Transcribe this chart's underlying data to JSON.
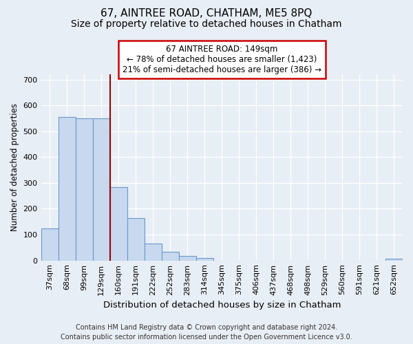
{
  "title": "67, AINTREE ROAD, CHATHAM, ME5 8PQ",
  "subtitle": "Size of property relative to detached houses in Chatham",
  "xlabel": "Distribution of detached houses by size in Chatham",
  "ylabel": "Number of detached properties",
  "categories": [
    "37sqm",
    "68sqm",
    "99sqm",
    "129sqm",
    "160sqm",
    "191sqm",
    "222sqm",
    "252sqm",
    "283sqm",
    "314sqm",
    "345sqm",
    "375sqm",
    "406sqm",
    "437sqm",
    "468sqm",
    "498sqm",
    "529sqm",
    "560sqm",
    "591sqm",
    "621sqm",
    "652sqm"
  ],
  "values": [
    125,
    555,
    550,
    550,
    285,
    163,
    65,
    33,
    17,
    11,
    0,
    0,
    0,
    0,
    0,
    0,
    0,
    0,
    0,
    0,
    7
  ],
  "bar_color": "#c8d8ee",
  "bar_edge_color": "#6699cc",
  "vline_x_idx": 3.5,
  "vline_color": "#990000",
  "annotation_text": "67 AINTREE ROAD: 149sqm\n← 78% of detached houses are smaller (1,423)\n21% of semi-detached houses are larger (386) →",
  "annotation_box_facecolor": "#ffffff",
  "annotation_box_edgecolor": "#cc0000",
  "ylim": [
    0,
    720
  ],
  "yticks": [
    0,
    100,
    200,
    300,
    400,
    500,
    600,
    700
  ],
  "bg_color": "#e8eef5",
  "plot_bg_color": "#e8eef5",
  "title_fontsize": 11,
  "subtitle_fontsize": 10,
  "xlabel_fontsize": 9.5,
  "ylabel_fontsize": 8.5,
  "tick_fontsize": 8,
  "footer_fontsize": 7,
  "footer": "Contains HM Land Registry data © Crown copyright and database right 2024.\nContains public sector information licensed under the Open Government Licence v3.0."
}
